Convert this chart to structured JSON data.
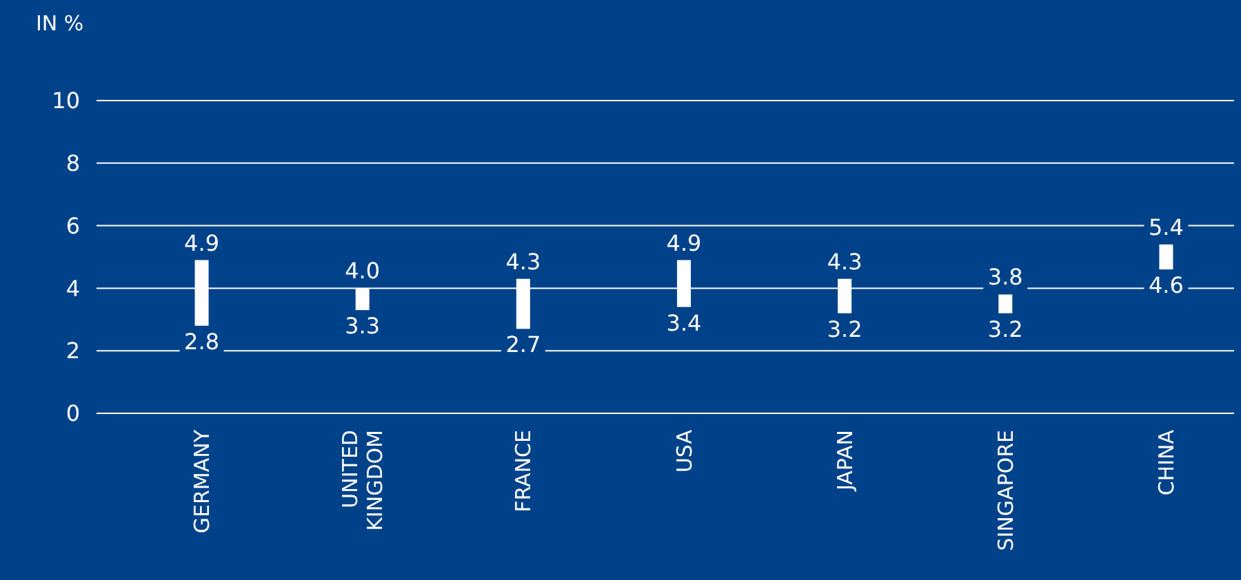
{
  "chart_data": {
    "type": "bar",
    "ylabel": "IN %",
    "categories": [
      "GERMANY",
      "UNITED KINGDOM",
      "FRANCE",
      "USA",
      "JAPAN",
      "SINGAPORE",
      "CHINA"
    ],
    "base": [
      2.8,
      3.3,
      2.7,
      3.4,
      3.2,
      3.2,
      4.6
    ],
    "values": [
      2.1,
      0.7,
      1.6,
      1.5,
      1.1,
      0.6,
      0.8
    ],
    "color": "#ffffff",
    "ylim": [
      0,
      10
    ],
    "yticks": [
      0,
      2,
      4,
      6,
      8,
      10
    ],
    "grid": "y",
    "annotations": [
      {
        "text": "4.9",
        "x": "GERMANY",
        "y": 4.9
      },
      {
        "text": "2.8",
        "x": "GERMANY",
        "y": 2.8
      },
      {
        "text": "4.0",
        "x": "UNITED KINGDOM",
        "y": 4.0
      },
      {
        "text": "3.3",
        "x": "UNITED KINGDOM",
        "y": 3.3
      },
      {
        "text": "4.3",
        "x": "FRANCE",
        "y": 4.3
      },
      {
        "text": "2.7",
        "x": "FRANCE",
        "y": 2.7
      },
      {
        "text": "4.9",
        "x": "USA",
        "y": 4.9
      },
      {
        "text": "3.4",
        "x": "USA",
        "y": 3.4
      },
      {
        "text": "4.3",
        "x": "JAPAN",
        "y": 4.3
      },
      {
        "text": "3.2",
        "x": "JAPAN",
        "y": 3.2
      },
      {
        "text": "3.8",
        "x": "SINGAPORE",
        "y": 3.8
      },
      {
        "text": "3.2",
        "x": "SINGAPORE",
        "y": 3.2
      },
      {
        "text": "5.4",
        "x": "CHINA",
        "y": 5.4
      },
      {
        "text": "4.6",
        "x": "CHINA",
        "y": 4.6
      }
    ]
  }
}
